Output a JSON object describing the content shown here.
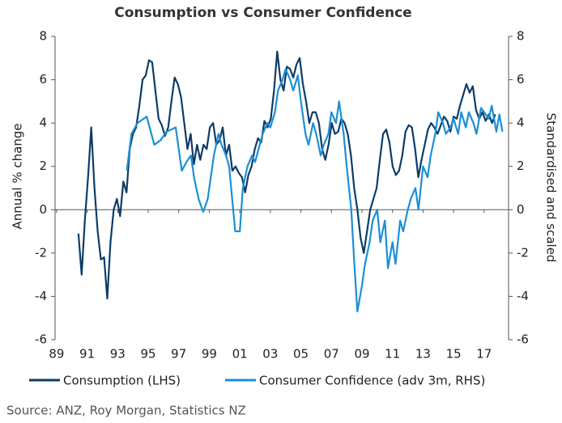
{
  "chart_data": {
    "type": "line",
    "title": "Consumption vs Consumer Confidence",
    "y_label": "Annual % change",
    "y2_label": "Standardised and scaled",
    "source": "Source: ANZ, Roy Morgan, Statistics NZ",
    "xlim": [
      1988.9,
      2018.6
    ],
    "ylim": [
      -6,
      8
    ],
    "y2lim": [
      -6,
      8
    ],
    "xticks": [
      {
        "value": 1989,
        "label": "89"
      },
      {
        "value": 1991,
        "label": "91"
      },
      {
        "value": 1993,
        "label": "93"
      },
      {
        "value": 1995,
        "label": "95"
      },
      {
        "value": 1997,
        "label": "97"
      },
      {
        "value": 1999,
        "label": "99"
      },
      {
        "value": 2001,
        "label": "01"
      },
      {
        "value": 2003,
        "label": "03"
      },
      {
        "value": 2005,
        "label": "05"
      },
      {
        "value": 2007,
        "label": "07"
      },
      {
        "value": 2009,
        "label": "09"
      },
      {
        "value": 2011,
        "label": "11"
      },
      {
        "value": 2013,
        "label": "13"
      },
      {
        "value": 2015,
        "label": "15"
      },
      {
        "value": 2017,
        "label": "17"
      }
    ],
    "yticks": [
      -6,
      -4,
      -2,
      0,
      2,
      4,
      6,
      8
    ],
    "y2ticks": [
      -6,
      -4,
      -2,
      0,
      2,
      4,
      6,
      8
    ],
    "series": [
      {
        "name": "Consumption (LHS)",
        "color": "#0d3c68",
        "axis": "y",
        "x": [
          1990.43,
          1990.64,
          1990.85,
          1991.06,
          1991.27,
          1991.48,
          1991.69,
          1991.9,
          1992.11,
          1992.32,
          1992.53,
          1992.74,
          1992.95,
          1993.16,
          1993.37,
          1993.58,
          1993.79,
          1994.0,
          1994.21,
          1994.42,
          1994.63,
          1994.84,
          1995.05,
          1995.26,
          1995.47,
          1995.68,
          1995.89,
          1996.1,
          1996.31,
          1996.52,
          1996.73,
          1996.94,
          1997.15,
          1997.36,
          1997.57,
          1997.78,
          1997.99,
          1998.2,
          1998.41,
          1998.62,
          1998.83,
          1999.04,
          1999.25,
          1999.46,
          1999.67,
          1999.88,
          2000.09,
          2000.3,
          2000.51,
          2000.72,
          2000.93,
          2001.14,
          2001.35,
          2001.56,
          2001.77,
          2001.98,
          2002.19,
          2002.4,
          2002.61,
          2002.82,
          2003.03,
          2003.24,
          2003.45,
          2003.66,
          2003.87,
          2004.08,
          2004.29,
          2004.5,
          2004.71,
          2004.92,
          2005.13,
          2005.34,
          2005.55,
          2005.76,
          2005.97,
          2006.18,
          2006.39,
          2006.6,
          2006.81,
          2007.02,
          2007.23,
          2007.44,
          2007.65,
          2007.86,
          2008.07,
          2008.28,
          2008.49,
          2008.7,
          2008.91,
          2009.12,
          2009.33,
          2009.54,
          2009.75,
          2009.96,
          2010.17,
          2010.38,
          2010.59,
          2010.8,
          2011.01,
          2011.22,
          2011.43,
          2011.64,
          2011.85,
          2012.06,
          2012.27,
          2012.48,
          2012.69,
          2012.9,
          2013.11,
          2013.32,
          2013.53,
          2013.74,
          2013.95,
          2014.16,
          2014.37,
          2014.58,
          2014.79,
          2015.0,
          2015.21,
          2015.42,
          2015.63,
          2015.84,
          2016.05,
          2016.26,
          2016.47,
          2016.68,
          2016.89,
          2017.1,
          2017.31,
          2017.52,
          2017.73
        ],
        "values": [
          -1.1,
          -3.0,
          -0.5,
          1.5,
          3.8,
          1.0,
          -1.0,
          -2.3,
          -2.2,
          -4.1,
          -1.5,
          0.0,
          0.5,
          -0.3,
          1.3,
          0.8,
          2.8,
          3.5,
          3.8,
          4.8,
          6.0,
          6.2,
          6.9,
          6.8,
          5.5,
          4.2,
          3.9,
          3.4,
          3.8,
          5.0,
          6.1,
          5.8,
          5.2,
          4.0,
          2.8,
          3.5,
          2.1,
          3.0,
          2.3,
          3.0,
          2.8,
          3.8,
          4.0,
          3.0,
          3.2,
          3.8,
          2.5,
          3.0,
          1.8,
          2.0,
          1.7,
          1.5,
          0.8,
          1.6,
          2.0,
          2.8,
          3.3,
          3.1,
          4.1,
          3.8,
          4.2,
          5.5,
          7.3,
          6.0,
          5.5,
          6.6,
          6.5,
          6.1,
          6.7,
          7.0,
          5.8,
          5.0,
          4.0,
          4.5,
          4.5,
          4.0,
          2.8,
          2.3,
          3.0,
          4.0,
          3.5,
          3.6,
          4.2,
          4.0,
          3.5,
          2.5,
          1.0,
          0.0,
          -1.3,
          -2.0,
          -1.0,
          0.0,
          0.5,
          1.0,
          2.3,
          3.5,
          3.7,
          3.1,
          2.0,
          1.6,
          1.8,
          2.5,
          3.6,
          3.9,
          3.8,
          2.8,
          1.5,
          2.3,
          3.0,
          3.7,
          4.0,
          3.8,
          3.5,
          3.9,
          4.3,
          4.1,
          3.6,
          4.3,
          4.2,
          4.8,
          5.3,
          5.8,
          5.4,
          5.7,
          4.6,
          4.2,
          4.5,
          4.1,
          4.4,
          4.0,
          4.4
        ]
      },
      {
        "name": "Consumer Confidence (adv 3m, RHS)",
        "color": "#1c8fd6",
        "axis": "y2",
        "x": [
          1993.6,
          1993.9,
          1994.3,
          1994.9,
          1995.4,
          1995.8,
          1996.2,
          1996.8,
          1997.2,
          1997.5,
          1997.8,
          1998.0,
          1998.3,
          1998.6,
          1998.9,
          1999.1,
          1999.3,
          1999.6,
          1999.8,
          2000.1,
          2000.3,
          2000.5,
          2000.7,
          2001.0,
          2001.2,
          2001.5,
          2001.8,
          2002.0,
          2002.3,
          2002.5,
          2002.8,
          2003.0,
          2003.3,
          2003.5,
          2003.8,
          2004.0,
          2004.3,
          2004.5,
          2004.8,
          2005.0,
          2005.3,
          2005.5,
          2005.8,
          2006.0,
          2006.3,
          2006.5,
          2006.8,
          2007.0,
          2007.3,
          2007.5,
          2007.8,
          2008.0,
          2008.3,
          2008.5,
          2008.7,
          2009.0,
          2009.2,
          2009.5,
          2009.7,
          2010.0,
          2010.2,
          2010.5,
          2010.7,
          2011.0,
          2011.2,
          2011.5,
          2011.7,
          2012.0,
          2012.2,
          2012.5,
          2012.7,
          2013.0,
          2013.3,
          2013.5,
          2013.8,
          2014.0,
          2014.3,
          2014.5,
          2014.8,
          2015.0,
          2015.3,
          2015.5,
          2015.8,
          2016.0,
          2016.3,
          2016.5,
          2016.8,
          2017.0,
          2017.3,
          2017.5,
          2017.8,
          2018.0,
          2018.2
        ],
        "values": [
          1.8,
          3.5,
          4.0,
          4.3,
          3.0,
          3.2,
          3.6,
          3.8,
          1.8,
          2.2,
          2.5,
          1.5,
          0.5,
          -0.1,
          0.5,
          1.5,
          2.5,
          3.5,
          3.0,
          2.5,
          2.0,
          0.5,
          -1.0,
          -1.0,
          1.0,
          2.0,
          2.5,
          2.2,
          3.0,
          3.5,
          4.0,
          3.8,
          4.5,
          5.5,
          6.0,
          6.5,
          6.0,
          5.5,
          6.2,
          5.0,
          3.5,
          3.0,
          4.0,
          3.5,
          2.5,
          3.0,
          3.5,
          4.5,
          4.0,
          5.0,
          3.5,
          2.0,
          0.0,
          -2.5,
          -4.7,
          -3.5,
          -2.5,
          -1.5,
          -0.5,
          0.0,
          -1.5,
          -0.5,
          -2.7,
          -1.5,
          -2.5,
          -0.5,
          -1.0,
          0.0,
          0.5,
          1.0,
          0.0,
          2.0,
          1.5,
          2.5,
          3.5,
          4.5,
          4.0,
          3.5,
          3.8,
          4.2,
          3.5,
          4.5,
          3.8,
          4.5,
          4.0,
          3.5,
          4.7,
          4.5,
          4.2,
          4.8,
          3.6,
          4.4,
          3.6
        ]
      }
    ]
  }
}
